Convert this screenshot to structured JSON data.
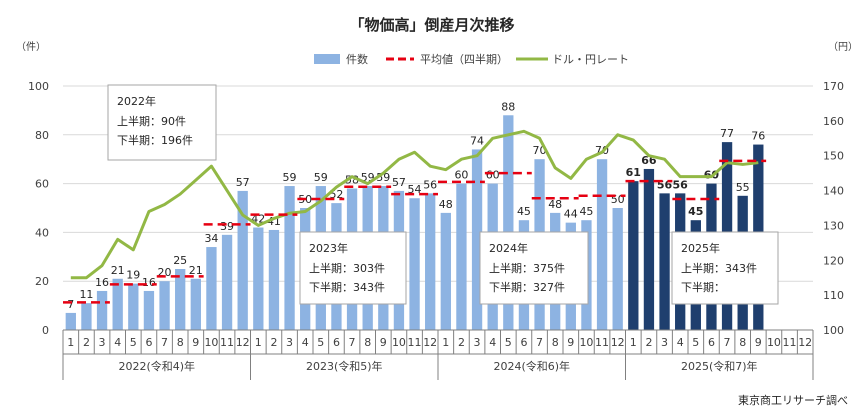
{
  "chart_data": {
    "type": "bar",
    "title": "「物価高」倒産月次推移",
    "y_left_unit": "（件）",
    "y_right_unit": "（円）",
    "ylim": [
      0,
      100
    ],
    "y2lim": [
      100,
      170
    ],
    "y_ticks": [
      "0",
      "20",
      "40",
      "60",
      "80",
      "100"
    ],
    "y2_ticks": [
      "100",
      "110",
      "120",
      "130",
      "140",
      "150",
      "160",
      "170"
    ],
    "grid": true,
    "legend_position": "top",
    "legend": {
      "bars": "件数",
      "avg": "平均値（四半期）",
      "fx": "ドル・円レート"
    },
    "month_labels": [
      "1",
      "2",
      "3",
      "4",
      "5",
      "6",
      "7",
      "8",
      "9",
      "10",
      "11",
      "12"
    ],
    "years": [
      "2022(令和4)年",
      "2023(令和5)年",
      "2024(令和6)年",
      "2025(令和7)年"
    ],
    "values": [
      7,
      11,
      16,
      21,
      19,
      16,
      20,
      25,
      21,
      34,
      39,
      57,
      42,
      41,
      59,
      50,
      59,
      52,
      58,
      59,
      59,
      57,
      54,
      56,
      48,
      60,
      74,
      60,
      88,
      45,
      70,
      48,
      44,
      45,
      70,
      50,
      61,
      66,
      56,
      56,
      45,
      60,
      77,
      55,
      76
    ],
    "value_labels": [
      "7",
      "11",
      "16",
      "21",
      "19",
      "16",
      "20",
      "25",
      "21",
      "34",
      "39",
      "57",
      "42",
      "41",
      "59",
      "50",
      "59",
      "52",
      "58",
      "59",
      "59",
      "57",
      "54",
      "56",
      "48",
      "60",
      "74",
      "60",
      "88",
      "45",
      "70",
      "48",
      "44",
      "45",
      "70",
      "50",
      "61",
      "66",
      "56",
      "56",
      "45",
      "60",
      "77",
      "55",
      "76"
    ],
    "quarterly_avg": [
      11.3,
      11.3,
      11.3,
      18.7,
      18.7,
      18.7,
      22,
      22,
      22,
      43.3,
      43.3,
      43.3,
      47.3,
      47.3,
      47.3,
      53.7,
      53.7,
      53.7,
      58.7,
      58.7,
      58.7,
      55.7,
      55.7,
      55.7,
      60.7,
      60.7,
      60.7,
      64.3,
      64.3,
      64.3,
      54,
      54,
      54,
      55,
      55,
      55,
      61,
      61,
      61,
      53.7,
      53.7,
      53.7,
      69.3,
      69.3,
      69.3
    ],
    "usd_jpy": [
      115,
      115,
      118.5,
      126,
      123,
      134,
      136,
      139,
      143,
      147,
      140,
      133,
      130,
      132,
      133.5,
      134,
      137,
      141,
      144,
      142,
      145,
      149,
      151,
      147,
      146,
      149,
      150,
      155,
      156,
      157,
      155,
      146.5,
      143.5,
      149,
      151,
      156,
      154.5,
      150,
      149,
      144,
      144,
      144,
      148,
      147.5,
      148
    ],
    "highlight_from_index": 36,
    "colors": {
      "bar": "#8db3e2",
      "bar_highlight": "#1f3f6e",
      "avg_line": "#e60012",
      "fx_line": "#92b845",
      "grid": "#d9d9d9",
      "axis": "#808080",
      "text": "#404040"
    },
    "annotations": [
      {
        "title": "2022年",
        "lines": [
          "上半期：90件",
          "下半期：196件"
        ]
      },
      {
        "title": "2023年",
        "lines": [
          "上半期：303件",
          "下半期：343件"
        ]
      },
      {
        "title": "2024年",
        "lines": [
          "上半期：375件",
          "下半期：327件"
        ]
      },
      {
        "title": "2025年",
        "lines": [
          "上半期：343件",
          "下半期："
        ]
      }
    ],
    "source": "東京商工リサーチ調べ"
  }
}
